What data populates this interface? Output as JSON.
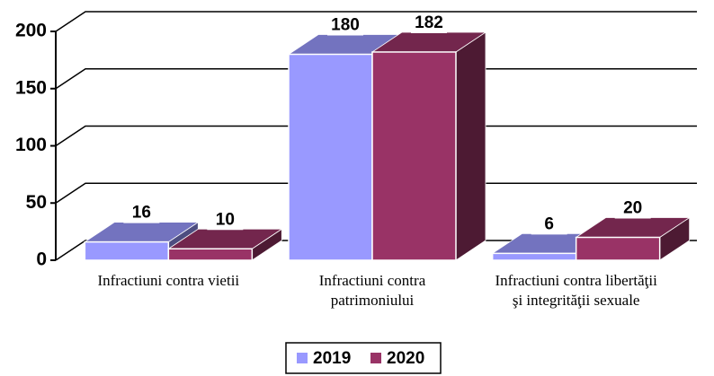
{
  "chart_data": {
    "type": "bar3d",
    "categories": [
      "Infractiuni contra vietii",
      "Infractiuni contra\npatrimoniului",
      "Infractiuni contra libertăţii\nşi integrităţii sexuale"
    ],
    "series": [
      {
        "name": "2019",
        "color": "#9999ff",
        "values": [
          16,
          180,
          6
        ]
      },
      {
        "name": "2020",
        "color": "#993366",
        "values": [
          10,
          182,
          20
        ]
      }
    ],
    "ylim": [
      0,
      200
    ],
    "yticks": [
      0,
      50,
      100,
      150,
      200
    ],
    "grid": true,
    "legend": "bottom"
  }
}
